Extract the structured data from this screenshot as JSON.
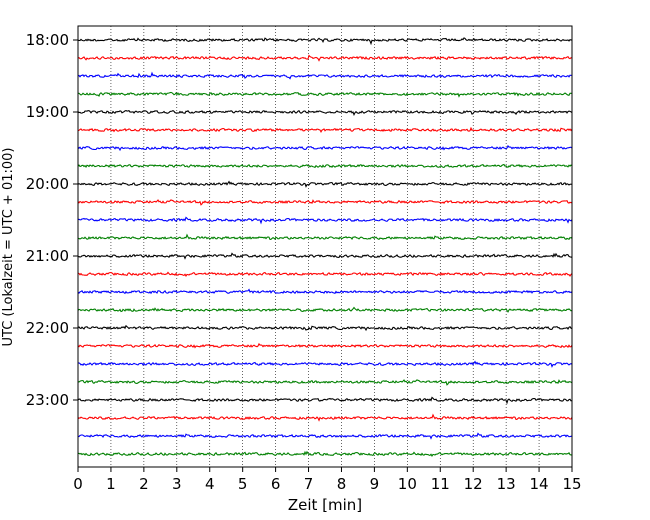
{
  "chart_data": {
    "type": "line",
    "title": "",
    "xlabel": "Zeit  [min]",
    "ylabel": "UTC (Lokalzeit = UTC + 01:00)",
    "xlim": [
      0,
      15
    ],
    "x_ticks": [
      "0",
      "1",
      "2",
      "3",
      "4",
      "5",
      "6",
      "7",
      "8",
      "9",
      "10",
      "11",
      "12",
      "13",
      "14",
      "15"
    ],
    "y_ticks": [
      "18:00",
      "19:00",
      "20:00",
      "21:00",
      "22:00",
      "23:00"
    ],
    "grid": "vertical dotted lines at each minute",
    "trace_start": "18:00",
    "trace_interval_min": 15,
    "trace_count": 24,
    "trace_colors": [
      "#000000",
      "#ff0000",
      "#0000ff",
      "#008000"
    ],
    "series_description": "seismogram traces, one per 15 minutes, low-amplitude noise"
  }
}
